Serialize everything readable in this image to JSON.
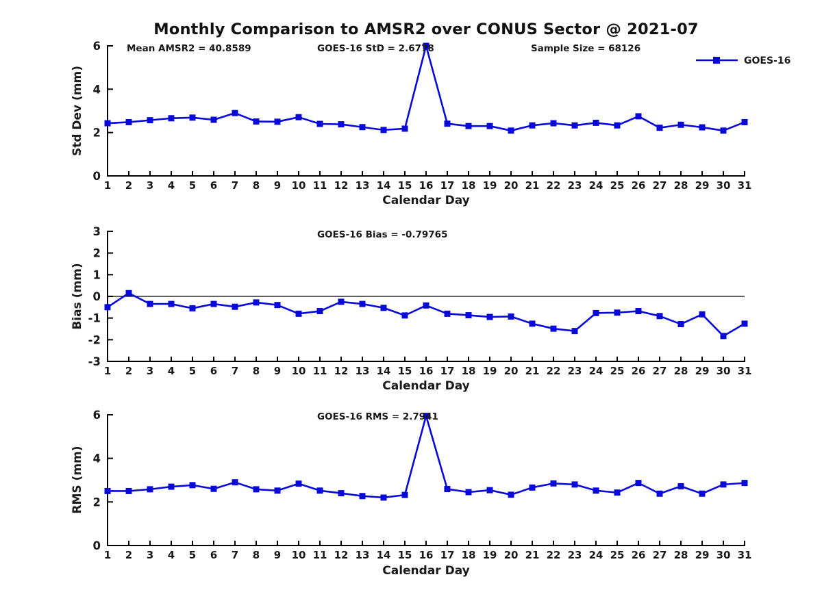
{
  "title": "Monthly Comparison to AMSR2 over CONUS Sector @ 2021-07",
  "legend": {
    "label": "GOES-16"
  },
  "colors": {
    "line": "#0808d8",
    "axis": "#000000",
    "text": "#191919"
  },
  "chart_data": [
    {
      "type": "line",
      "ylabel": "Std Dev (mm)",
      "xlabel": "Calendar Day",
      "ylim": [
        0,
        6
      ],
      "yticks": [
        0,
        2,
        4,
        6
      ],
      "x": [
        1,
        2,
        3,
        4,
        5,
        6,
        7,
        8,
        9,
        10,
        11,
        12,
        13,
        14,
        15,
        16,
        17,
        18,
        19,
        20,
        21,
        22,
        23,
        24,
        25,
        26,
        27,
        28,
        29,
        30,
        31
      ],
      "series": [
        {
          "name": "GOES-16",
          "values": [
            2.43,
            2.48,
            2.57,
            2.66,
            2.69,
            2.59,
            2.9,
            2.51,
            2.5,
            2.71,
            2.4,
            2.38,
            2.25,
            2.12,
            2.18,
            6.0,
            2.41,
            2.3,
            2.3,
            2.09,
            2.33,
            2.43,
            2.33,
            2.45,
            2.33,
            2.75,
            2.22,
            2.36,
            2.24,
            2.09,
            2.48
          ]
        }
      ],
      "annotations": [
        {
          "text": "Mean AMSR2 = 40.8589"
        },
        {
          "text": "GOES-16 StD = 2.6778"
        },
        {
          "text": "Sample Size = 68126"
        }
      ],
      "zeroline": false,
      "grid": false,
      "legend_position": "top-right"
    },
    {
      "type": "line",
      "ylabel": "Bias (mm)",
      "xlabel": "Calendar Day",
      "ylim": [
        -3,
        3
      ],
      "yticks": [
        3,
        2,
        1,
        0,
        -1,
        -2,
        -3
      ],
      "x": [
        1,
        2,
        3,
        4,
        5,
        6,
        7,
        8,
        9,
        10,
        11,
        12,
        13,
        14,
        15,
        16,
        17,
        18,
        19,
        20,
        21,
        22,
        23,
        24,
        25,
        26,
        27,
        28,
        29,
        30,
        31
      ],
      "series": [
        {
          "name": "GOES-16",
          "values": [
            -0.5,
            0.15,
            -0.35,
            -0.35,
            -0.55,
            -0.35,
            -0.48,
            -0.28,
            -0.4,
            -0.8,
            -0.68,
            -0.25,
            -0.35,
            -0.53,
            -0.88,
            -0.42,
            -0.8,
            -0.87,
            -0.95,
            -0.93,
            -1.26,
            -1.49,
            -1.6,
            -0.77,
            -0.75,
            -0.68,
            -0.91,
            -1.28,
            -0.83,
            -1.83,
            -1.26
          ]
        }
      ],
      "annotations": [
        {
          "text": "GOES-16 Bias = -0.79765"
        }
      ],
      "zeroline": true,
      "grid": false
    },
    {
      "type": "line",
      "ylabel": "RMS (mm)",
      "xlabel": "Calendar Day",
      "ylim": [
        0,
        6
      ],
      "yticks": [
        0,
        2,
        4,
        6
      ],
      "x": [
        1,
        2,
        3,
        4,
        5,
        6,
        7,
        8,
        9,
        10,
        11,
        12,
        13,
        14,
        15,
        16,
        17,
        18,
        19,
        20,
        21,
        22,
        23,
        24,
        25,
        26,
        27,
        28,
        29,
        30,
        31
      ],
      "series": [
        {
          "name": "GOES-16",
          "values": [
            2.5,
            2.5,
            2.58,
            2.7,
            2.77,
            2.6,
            2.9,
            2.58,
            2.52,
            2.84,
            2.52,
            2.4,
            2.27,
            2.2,
            2.32,
            5.95,
            2.59,
            2.45,
            2.54,
            2.33,
            2.66,
            2.85,
            2.8,
            2.52,
            2.43,
            2.87,
            2.38,
            2.72,
            2.38,
            2.8,
            2.87
          ]
        }
      ],
      "annotations": [
        {
          "text": "GOES-16 RMS = 2.7941"
        }
      ],
      "zeroline": false,
      "grid": false
    }
  ]
}
